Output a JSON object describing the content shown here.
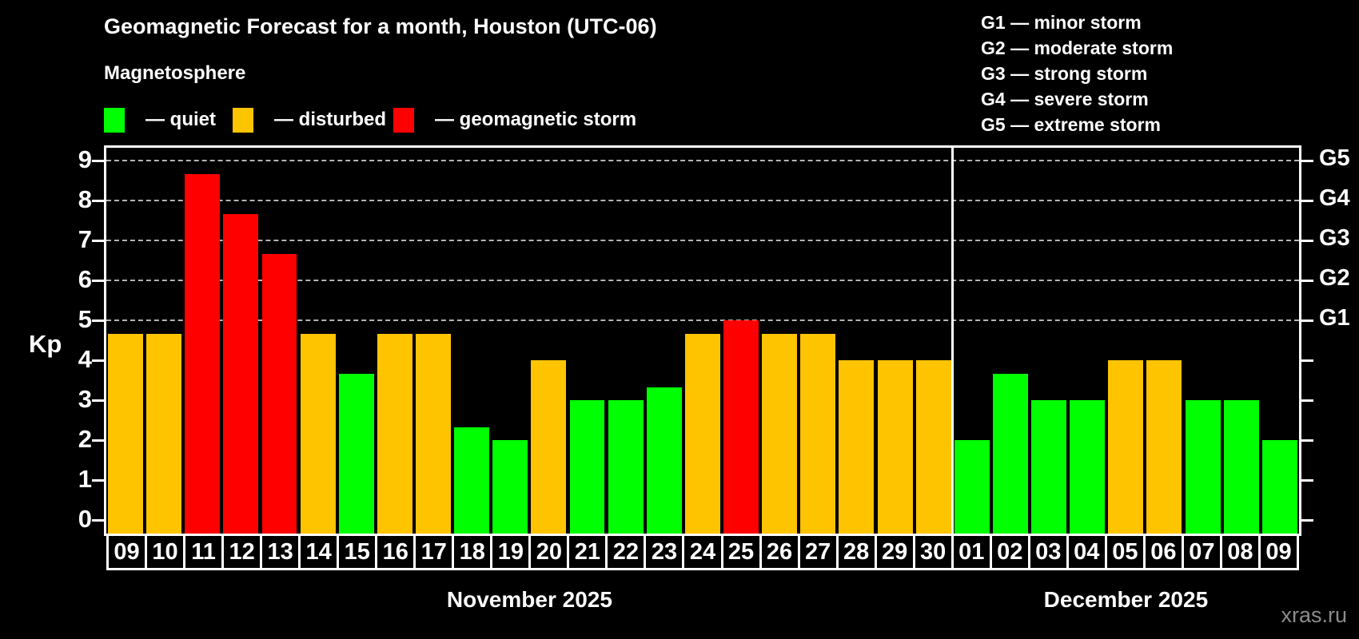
{
  "header": {
    "title": "Geomagnetic Forecast for a month, Houston (UTC-06)",
    "subtitle": "Magnetosphere"
  },
  "legend": {
    "items": [
      {
        "name": "quiet",
        "label": "— quiet",
        "color": "#00ff00"
      },
      {
        "name": "disturbed",
        "label": "— disturbed",
        "color": "#ffc400"
      },
      {
        "name": "storm",
        "label": "— geomagnetic storm",
        "color": "#ff0000"
      }
    ]
  },
  "g_scale_legend": {
    "items": [
      "G1 — minor storm",
      "G2 — moderate storm",
      "G3 — strong storm",
      "G4 — severe storm",
      "G5 — extreme storm"
    ]
  },
  "watermark": "xras.ru",
  "chart_data": {
    "type": "bar",
    "title": "Geomagnetic Forecast for a month, Houston (UTC-06)",
    "ylabel": "Kp",
    "ylim": [
      0,
      9
    ],
    "yticks": [
      0,
      1,
      2,
      3,
      4,
      5,
      6,
      7,
      8,
      9
    ],
    "gridlines": [
      5,
      6,
      7,
      8,
      9
    ],
    "grid_style": "dashed",
    "legend_position": "top",
    "right_axis": [
      {
        "value": 5,
        "label": "G1"
      },
      {
        "value": 6,
        "label": "G2"
      },
      {
        "value": 7,
        "label": "G3"
      },
      {
        "value": 8,
        "label": "G4"
      },
      {
        "value": 9,
        "label": "G5"
      }
    ],
    "status_colors": {
      "quiet": "#00ff00",
      "disturbed": "#ffc400",
      "storm": "#ff0000"
    },
    "months": [
      {
        "label": "November 2025",
        "days": [
          "09",
          "10",
          "11",
          "12",
          "13",
          "14",
          "15",
          "16",
          "17",
          "18",
          "19",
          "20",
          "21",
          "22",
          "23",
          "24",
          "25",
          "26",
          "27",
          "28",
          "29",
          "30"
        ],
        "values": [
          4.67,
          4.67,
          8.67,
          7.67,
          6.67,
          4.67,
          3.67,
          4.67,
          4.67,
          2.33,
          2.0,
          4.0,
          3.0,
          3.0,
          3.33,
          4.67,
          5.0,
          4.67,
          4.67,
          4.0,
          4.0,
          4.0
        ],
        "status": [
          "disturbed",
          "disturbed",
          "storm",
          "storm",
          "storm",
          "disturbed",
          "quiet",
          "disturbed",
          "disturbed",
          "quiet",
          "quiet",
          "disturbed",
          "quiet",
          "quiet",
          "quiet",
          "disturbed",
          "storm",
          "disturbed",
          "disturbed",
          "disturbed",
          "disturbed",
          "disturbed"
        ]
      },
      {
        "label": "December 2025",
        "days": [
          "01",
          "02",
          "03",
          "04",
          "05",
          "06",
          "07",
          "08",
          "09"
        ],
        "values": [
          2.0,
          3.67,
          3.0,
          3.0,
          4.0,
          4.0,
          3.0,
          3.0,
          2.0
        ],
        "status": [
          "quiet",
          "quiet",
          "quiet",
          "quiet",
          "disturbed",
          "disturbed",
          "quiet",
          "quiet",
          "quiet"
        ]
      }
    ]
  }
}
